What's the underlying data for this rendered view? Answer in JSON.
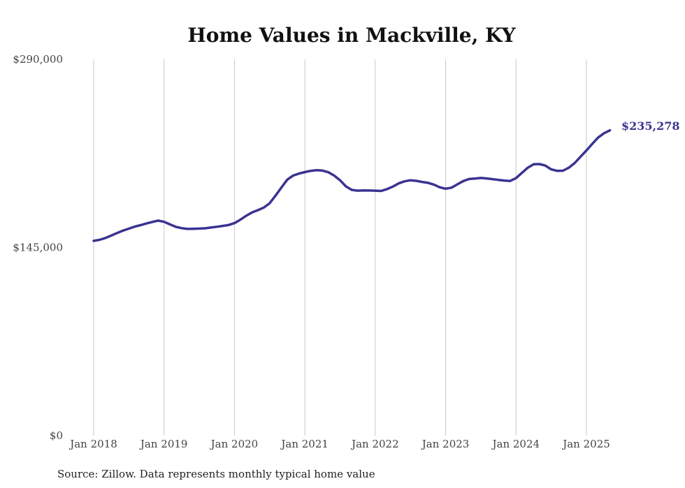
{
  "chart_data": {
    "type": "line",
    "title": "Home Values in Mackville, KY",
    "xlabel": "",
    "ylabel": "",
    "grid": "vertical",
    "y_ticks": [
      "$0",
      "$145,000",
      "$290,000"
    ],
    "y_tick_values": [
      0,
      145000,
      290000
    ],
    "ylim": [
      0,
      290000
    ],
    "x_ticks": [
      "Jan 2018",
      "Jan 2019",
      "Jan 2020",
      "Jan 2021",
      "Jan 2022",
      "Jan 2023",
      "Jan 2024",
      "Jan 2025"
    ],
    "x_tick_values": [
      "2018-01",
      "2019-01",
      "2020-01",
      "2021-01",
      "2022-01",
      "2023-01",
      "2024-01",
      "2025-01"
    ],
    "end_label": "$235,278",
    "series": [
      {
        "color": "#3a3391",
        "x": [
          "2018-01",
          "2018-02",
          "2018-03",
          "2018-04",
          "2018-05",
          "2018-06",
          "2018-07",
          "2018-08",
          "2018-09",
          "2018-10",
          "2018-11",
          "2018-12",
          "2019-01",
          "2019-02",
          "2019-03",
          "2019-04",
          "2019-05",
          "2019-06",
          "2019-07",
          "2019-08",
          "2019-09",
          "2019-10",
          "2019-11",
          "2019-12",
          "2020-01",
          "2020-02",
          "2020-03",
          "2020-04",
          "2020-05",
          "2020-06",
          "2020-07",
          "2020-08",
          "2020-09",
          "2020-10",
          "2020-11",
          "2020-12",
          "2021-01",
          "2021-02",
          "2021-03",
          "2021-04",
          "2021-05",
          "2021-06",
          "2021-07",
          "2021-08",
          "2021-09",
          "2021-10",
          "2021-11",
          "2021-12",
          "2022-01",
          "2022-02",
          "2022-03",
          "2022-04",
          "2022-05",
          "2022-06",
          "2022-07",
          "2022-08",
          "2022-09",
          "2022-10",
          "2022-11",
          "2022-12",
          "2023-01",
          "2023-02",
          "2023-03",
          "2023-04",
          "2023-05",
          "2023-06",
          "2023-07",
          "2023-08",
          "2023-09",
          "2023-10",
          "2023-11",
          "2023-12",
          "2024-01",
          "2024-02",
          "2024-03",
          "2024-04",
          "2024-05",
          "2024-06",
          "2024-07",
          "2024-08",
          "2024-09",
          "2024-10",
          "2024-11",
          "2024-12",
          "2025-01",
          "2025-02",
          "2025-03",
          "2025-04",
          "2025-05"
        ],
        "values": [
          150100,
          150900,
          152300,
          154200,
          156200,
          158000,
          159500,
          161100,
          162200,
          163500,
          164700,
          165700,
          164800,
          162800,
          160900,
          159900,
          159300,
          159400,
          159600,
          159800,
          160400,
          161000,
          161600,
          162300,
          163800,
          166400,
          169400,
          172000,
          173800,
          175800,
          179100,
          185000,
          191200,
          197300,
          200400,
          202000,
          203100,
          204100,
          204600,
          204300,
          203000,
          200400,
          196800,
          192100,
          189400,
          188800,
          189000,
          188900,
          188800,
          188600,
          190000,
          191900,
          194400,
          196000,
          196800,
          196400,
          195500,
          194800,
          193500,
          191400,
          190300,
          191100,
          193700,
          196200,
          197800,
          198100,
          198600,
          198200,
          197700,
          197100,
          196600,
          196300,
          198500,
          202500,
          206500,
          209200,
          209300,
          208100,
          205200,
          204100,
          204200,
          206500,
          210100,
          215000,
          219800,
          224900,
          229800,
          233100,
          235278
        ]
      }
    ],
    "source_note": "Source: Zillow. Data represents monthly typical home value"
  }
}
